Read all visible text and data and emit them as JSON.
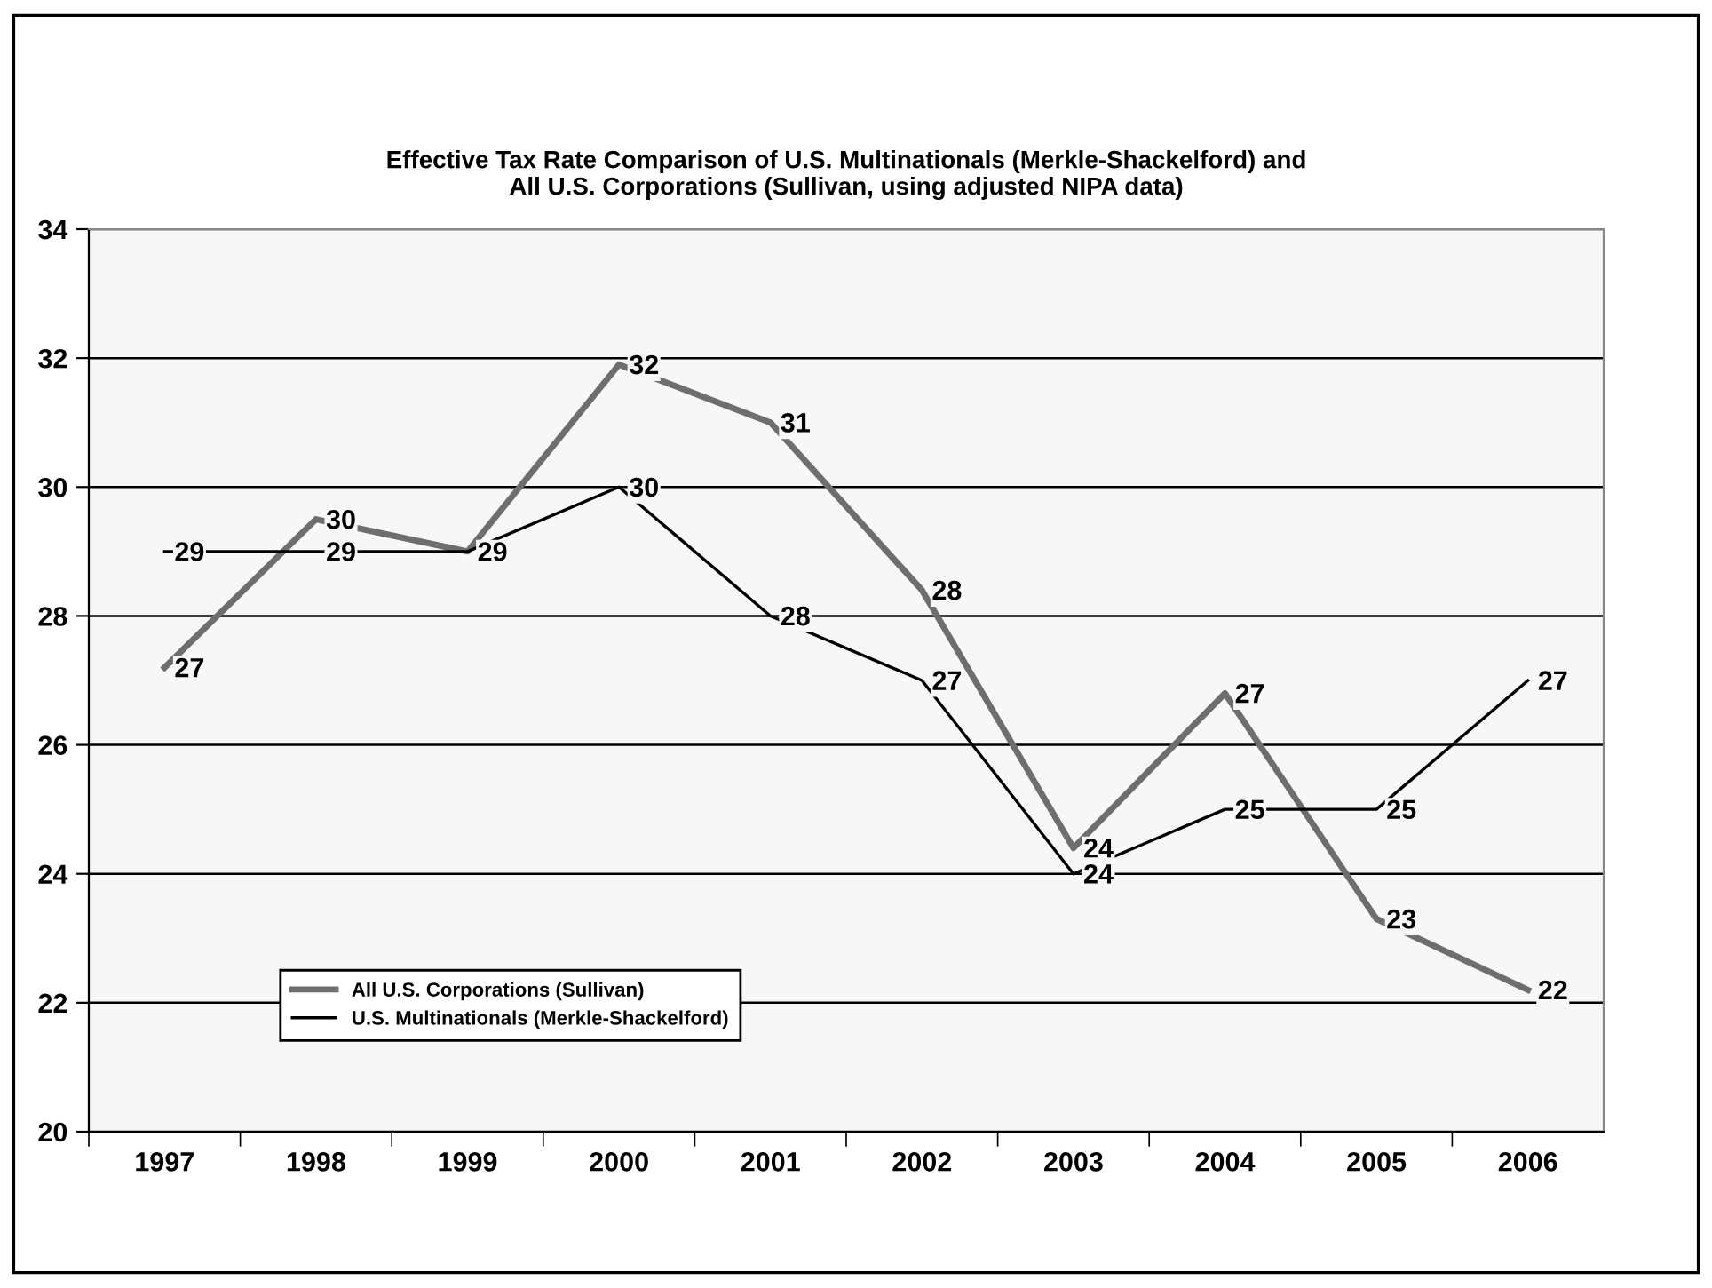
{
  "chart_data": {
    "type": "line",
    "title": "Effective Tax Rate Comparison of U.S. Multinationals (Merkle-Shackelford) and\nAll U.S. Corporations (Sullivan, using adjusted NIPA data)",
    "categories": [
      "1997",
      "1998",
      "1999",
      "2000",
      "2001",
      "2002",
      "2003",
      "2004",
      "2005",
      "2006"
    ],
    "series": [
      {
        "name": "All U.S. Corporations (Sullivan)",
        "color": "#6e6e6e",
        "values": [
          27.2,
          29.5,
          29,
          31.9,
          31.0,
          28.4,
          24.4,
          26.8,
          23.3,
          22.2
        ],
        "value_labels": [
          "27",
          "30",
          null,
          "32",
          "31",
          "28",
          "24",
          "27",
          "23",
          "22"
        ]
      },
      {
        "name": "U.S. Multinationals (Merkle-Shackelford)",
        "color": "#000000",
        "values": [
          29,
          29,
          29,
          30,
          28,
          27,
          24,
          25,
          25,
          27
        ],
        "value_labels": [
          "29",
          "29",
          "29",
          "30",
          "28",
          "27",
          "24",
          "25",
          "25",
          "27"
        ]
      }
    ],
    "ylim": [
      20,
      34
    ],
    "yticks": [
      20,
      22,
      24,
      26,
      28,
      30,
      32,
      34
    ],
    "grid": "y",
    "legend": "bottom left",
    "marker": "none",
    "line_style": "solid"
  }
}
